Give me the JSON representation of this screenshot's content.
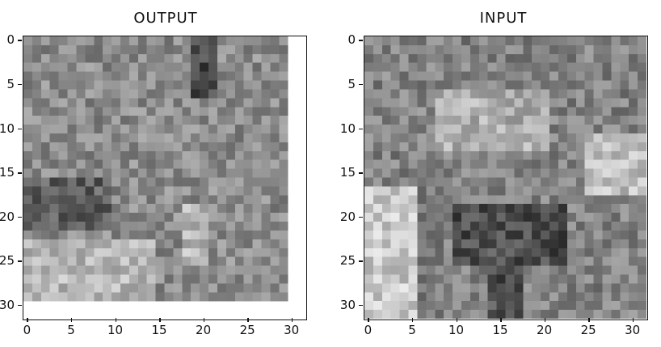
{
  "figures": [
    {
      "id": "output",
      "title": "OUTPUT",
      "xticks": [
        "0",
        "5",
        "10",
        "15",
        "20",
        "25",
        "30"
      ],
      "yticks": [
        "0",
        "5",
        "10",
        "15",
        "20",
        "25",
        "30"
      ]
    },
    {
      "id": "input",
      "title": "INPUT",
      "xticks": [
        "0",
        "5",
        "10",
        "15",
        "20",
        "25",
        "30"
      ],
      "yticks": [
        "0",
        "5",
        "10",
        "15",
        "20",
        "25",
        "30"
      ]
    }
  ],
  "colors": {
    "axis": "#111111",
    "background": "#ffffff"
  }
}
